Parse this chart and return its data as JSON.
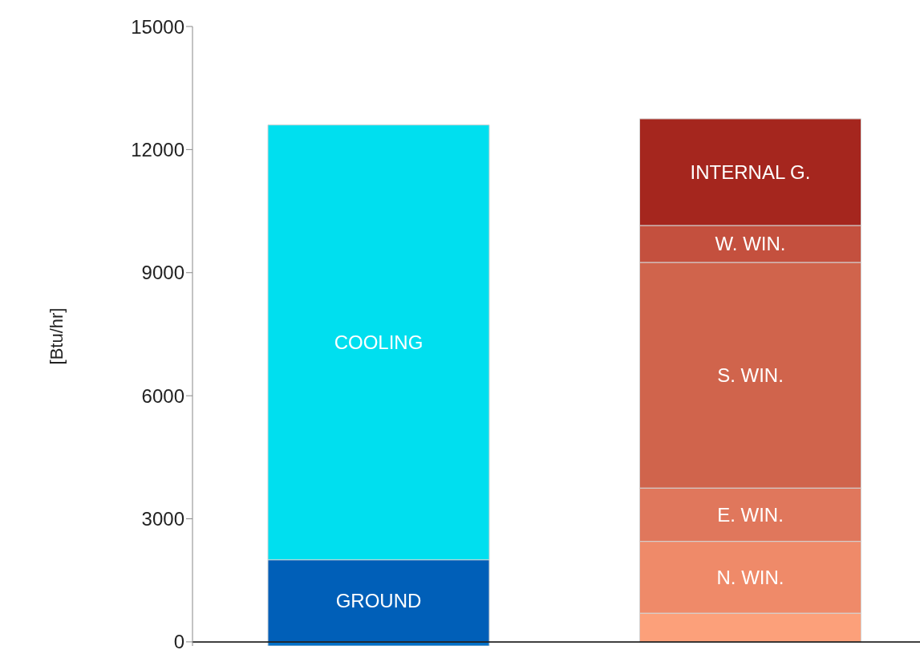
{
  "chart_data": {
    "type": "bar",
    "stacked": true,
    "ylabel": "[Btu/hr]",
    "categories": [
      null,
      null
    ],
    "ylim": [
      -100,
      15000
    ],
    "yticks": [
      0,
      3000,
      6000,
      9000,
      12000,
      15000
    ],
    "tick_labels": "y",
    "series": [
      {
        "color": "#0070c8",
        "values": [
          -100,
          null
        ]
      },
      {
        "name": "GROUND",
        "color": "#005fb8",
        "values": [
          2000,
          null
        ]
      },
      {
        "name": "COOLING",
        "color": "#00dfef",
        "values": [
          10600,
          null
        ]
      },
      {
        "color": "#fca07a",
        "values": [
          null,
          700
        ]
      },
      {
        "name": "N. WIN.",
        "color": "#ef8a69",
        "values": [
          null,
          1750
        ]
      },
      {
        "name": "E. WIN.",
        "color": "#e0775c",
        "values": [
          null,
          1300
        ]
      },
      {
        "name": "S. WIN.",
        "color": "#d0644c",
        "values": [
          null,
          5500
        ]
      },
      {
        "name": "W. WIN.",
        "color": "#c4503e",
        "values": [
          null,
          900
        ]
      },
      {
        "name": "INTERNAL G.",
        "color": "#a5261e",
        "values": [
          null,
          2600
        ]
      }
    ]
  }
}
